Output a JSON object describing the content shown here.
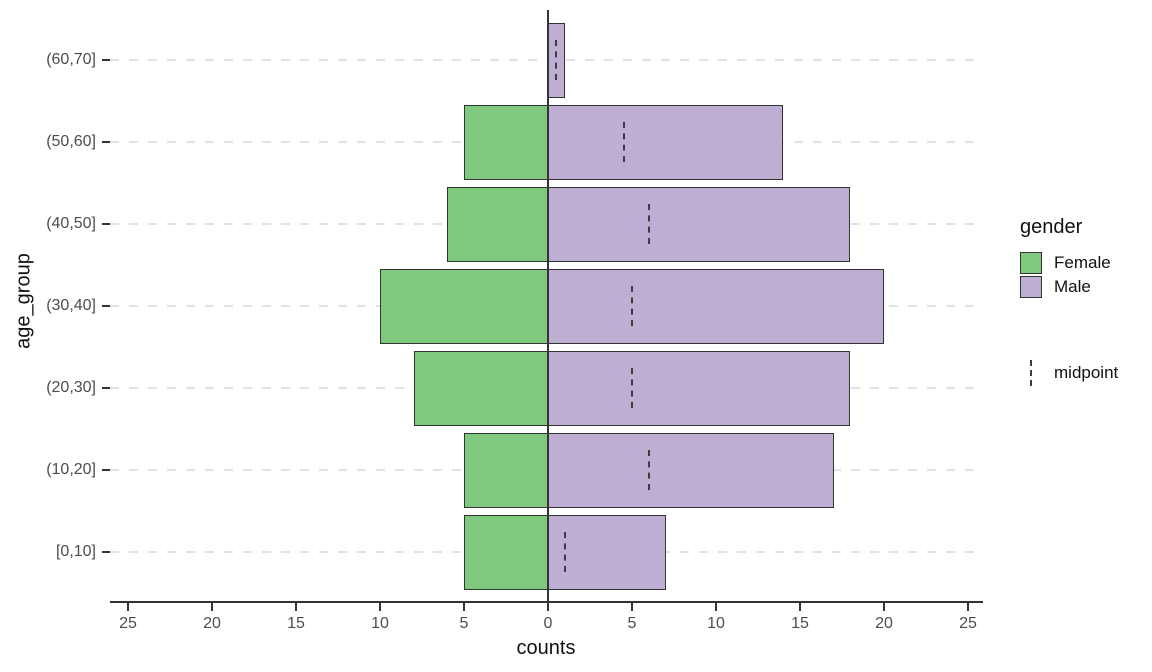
{
  "chart_data": {
    "type": "bar",
    "subtype": "population-pyramid",
    "orientation": "horizontal",
    "title": "",
    "xlabel": "counts",
    "ylabel": "age_group",
    "categories": [
      "(60,70]",
      "(50,60]",
      "(40,50]",
      "(30,40]",
      "(20,30]",
      "(10,20]",
      "[0,10]"
    ],
    "series": [
      {
        "name": "Female",
        "side": "left",
        "color": "#7fc97f",
        "values": [
          0,
          5,
          6,
          10,
          8,
          5,
          5
        ]
      },
      {
        "name": "Male",
        "side": "right",
        "color": "#beaed4",
        "values": [
          1,
          14,
          18,
          20,
          18,
          17,
          7
        ]
      }
    ],
    "midpoints": [
      0.5,
      4.5,
      6,
      5,
      5,
      6,
      1
    ],
    "x_ticks": [
      {
        "label": "25",
        "value": -25
      },
      {
        "label": "20",
        "value": -20
      },
      {
        "label": "15",
        "value": -15
      },
      {
        "label": "10",
        "value": -10
      },
      {
        "label": "5",
        "value": -5
      },
      {
        "label": "0",
        "value": 0
      },
      {
        "label": "5",
        "value": 5
      },
      {
        "label": "10",
        "value": 10
      },
      {
        "label": "15",
        "value": 15
      },
      {
        "label": "20",
        "value": 20
      },
      {
        "label": "25",
        "value": 25
      }
    ],
    "xlim": [
      -26,
      26
    ],
    "grid": "horizontal-dashed",
    "legend_position": "right",
    "legend": {
      "title": "gender",
      "entries": [
        {
          "label": "Female",
          "color": "#7fc97f"
        },
        {
          "label": "Male",
          "color": "#beaed4"
        }
      ],
      "midpoint_label": "midpoint"
    }
  },
  "colors": {
    "female_fill": "#7fc97f",
    "male_fill": "#beaed4",
    "bar_stroke": "#333333",
    "gridline": "#e2e2e2",
    "axis_line": "#333333",
    "tick_label": "#4d4d4d",
    "title_text": "#111111",
    "midpoint_dash": "#3d3d3d",
    "background": "#ffffff"
  }
}
